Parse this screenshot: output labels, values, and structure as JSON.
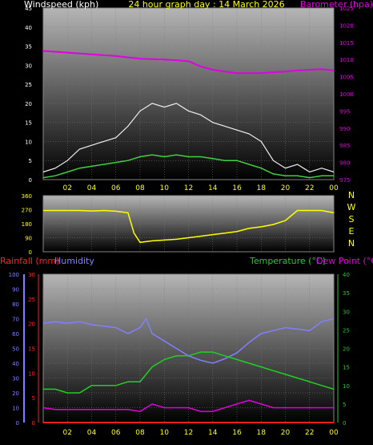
{
  "chart_data": [
    {
      "type": "line",
      "title": "24 hour graph day : 14 March 2026",
      "left_label": "Windspeed (kph)",
      "right_label": "Barometer (hpa)",
      "left_axis": {
        "ylim": [
          0,
          45
        ],
        "ticks": [
          0,
          5,
          10,
          15,
          20,
          25,
          30,
          35,
          40,
          45
        ]
      },
      "right_axis": {
        "ylim": [
          975,
          1025
        ],
        "ticks": [
          975,
          980,
          985,
          990,
          995,
          1000,
          1005,
          1010,
          1015,
          1020,
          1025
        ]
      },
      "x_ticks": [
        "02",
        "04",
        "06",
        "08",
        "10",
        "12",
        "14",
        "16",
        "18",
        "20",
        "22",
        "00"
      ],
      "colors": {
        "barometer": "#e000e0",
        "gust": "#f0f0f0",
        "wind": "#40d040",
        "left_axis": "#ffffff",
        "right_axis": "#e000e0",
        "title": "#ffff00",
        "ticks": "#ffff00"
      },
      "series": [
        {
          "name": "Barometer (hpa)",
          "axis": "right",
          "x": [
            0,
            2,
            4,
            6,
            8,
            10,
            11,
            12,
            13,
            14,
            15,
            16,
            17,
            18,
            19,
            20,
            21,
            22,
            23,
            24
          ],
          "y": [
            1012.5,
            1012,
            1011.5,
            1011,
            1010.2,
            1010,
            1009.8,
            1009.5,
            1008,
            1007,
            1006.5,
            1006,
            1006,
            1006,
            1006.3,
            1006.5,
            1006.8,
            1007,
            1007.2,
            1006.8
          ]
        },
        {
          "name": "gust",
          "axis": "left",
          "x": [
            0,
            1,
            2,
            3,
            4,
            5,
            6,
            7,
            8,
            9,
            10,
            11,
            12,
            13,
            14,
            15,
            16,
            17,
            18,
            19,
            20,
            21,
            22,
            23,
            24
          ],
          "y": [
            2,
            3,
            5,
            8,
            9,
            10,
            11,
            14,
            18,
            20,
            19,
            20,
            18,
            17,
            15,
            14,
            13,
            12,
            10,
            5,
            3,
            4,
            2,
            3,
            2
          ]
        },
        {
          "name": "wind",
          "axis": "left",
          "x": [
            0,
            1,
            2,
            3,
            4,
            5,
            6,
            7,
            8,
            9,
            10,
            11,
            12,
            13,
            14,
            15,
            16,
            17,
            18,
            19,
            20,
            21,
            22,
            23,
            24
          ],
          "y": [
            0.5,
            1,
            2,
            3,
            3.5,
            4,
            4.5,
            5,
            6,
            6.5,
            6,
            6.5,
            6,
            6,
            5.5,
            5,
            5,
            4,
            3,
            1.5,
            1,
            1,
            0.5,
            1,
            1
          ]
        }
      ]
    },
    {
      "type": "scatter",
      "left_axis": {
        "ylim": [
          0,
          360
        ],
        "ticks": [
          0,
          90,
          180,
          270,
          360
        ]
      },
      "direction_labels": [
        "N",
        "W",
        "S",
        "E",
        "N"
      ],
      "x_ticks": [
        "02",
        "04",
        "06",
        "08",
        "10",
        "12",
        "14",
        "16",
        "18",
        "20",
        "22",
        "00"
      ],
      "colors": {
        "series": "#ffff00",
        "axis": "#ffff00",
        "dirs": "#ffff00"
      },
      "series": [
        {
          "name": "wind direction",
          "x": [
            0,
            1,
            2,
            3,
            4,
            5,
            6,
            7,
            7.5,
            8,
            9,
            10,
            11,
            12,
            13,
            14,
            15,
            16,
            17,
            18,
            19,
            20,
            21,
            22,
            23,
            24
          ],
          "y": [
            265,
            265,
            265,
            265,
            262,
            265,
            260,
            250,
            120,
            60,
            70,
            75,
            80,
            90,
            100,
            110,
            120,
            130,
            150,
            160,
            175,
            200,
            265,
            265,
            265,
            250
          ]
        }
      ]
    },
    {
      "type": "line",
      "left_label_1": "Rainfall (mm)",
      "left_label_2": "Humidity",
      "right_label_1": "Temperature (°C)",
      "right_label_2": "Dew Point (°C)",
      "humidity_axis": {
        "ylim": [
          0,
          100
        ],
        "ticks": [
          0,
          10,
          20,
          30,
          40,
          50,
          60,
          70,
          80,
          90,
          100
        ]
      },
      "rain_axis": {
        "ylim": [
          0,
          30
        ],
        "ticks": [
          0,
          5,
          10,
          15,
          20,
          25,
          30
        ]
      },
      "temp_axis": {
        "ylim": [
          0,
          40
        ],
        "ticks": [
          0,
          5,
          10,
          15,
          20,
          25,
          30,
          35,
          40
        ]
      },
      "x_ticks": [
        "02",
        "04",
        "06",
        "08",
        "10",
        "12",
        "14",
        "16",
        "18",
        "20",
        "22",
        "00"
      ],
      "colors": {
        "humidity": "#8080ff",
        "temperature": "#20d020",
        "dewpoint": "#e000e0",
        "rainfall": "#ff2020",
        "rain_label": "#ff2020",
        "hum_label": "#8080ff",
        "temp_label": "#20d020",
        "ticks": "#ffff00"
      },
      "series": [
        {
          "name": "Humidity",
          "axis": "humidity",
          "x": [
            0,
            1,
            2,
            3,
            4,
            5,
            6,
            7,
            8,
            8.5,
            9,
            10,
            11,
            12,
            13,
            14,
            15,
            16,
            17,
            18,
            19,
            20,
            21,
            22,
            23,
            24
          ],
          "y": [
            67,
            68,
            67,
            68,
            66,
            65,
            64,
            60,
            64,
            70,
            60,
            55,
            50,
            45,
            42,
            40,
            43,
            47,
            54,
            60,
            62,
            64,
            63,
            62,
            68,
            70
          ]
        },
        {
          "name": "Temperature",
          "axis": "temp",
          "x": [
            0,
            1,
            2,
            3,
            4,
            5,
            6,
            7,
            8,
            9,
            10,
            11,
            12,
            13,
            14,
            15,
            16,
            17,
            18,
            19,
            20,
            21,
            22,
            23,
            24
          ],
          "y": [
            9,
            9,
            8,
            8,
            10,
            10,
            10,
            11,
            11,
            15,
            17,
            18,
            18,
            19,
            19,
            18,
            17,
            16,
            15,
            14,
            13,
            12,
            11,
            10,
            9
          ]
        },
        {
          "name": "Dew Point",
          "axis": "temp",
          "x": [
            0,
            1,
            2,
            3,
            4,
            5,
            6,
            7,
            8,
            9,
            10,
            11,
            12,
            13,
            14,
            15,
            16,
            17,
            18,
            19,
            20,
            21,
            22,
            23,
            24
          ],
          "y": [
            4,
            3.5,
            3.5,
            3.5,
            3.5,
            3.5,
            3.5,
            3.5,
            3,
            5,
            4,
            4,
            4,
            3,
            3,
            4,
            5,
            6,
            5,
            4,
            4,
            4,
            4,
            4,
            4
          ]
        },
        {
          "name": "Rainfall",
          "axis": "rain",
          "x": [
            0,
            24
          ],
          "y": [
            0,
            0
          ]
        }
      ]
    }
  ]
}
